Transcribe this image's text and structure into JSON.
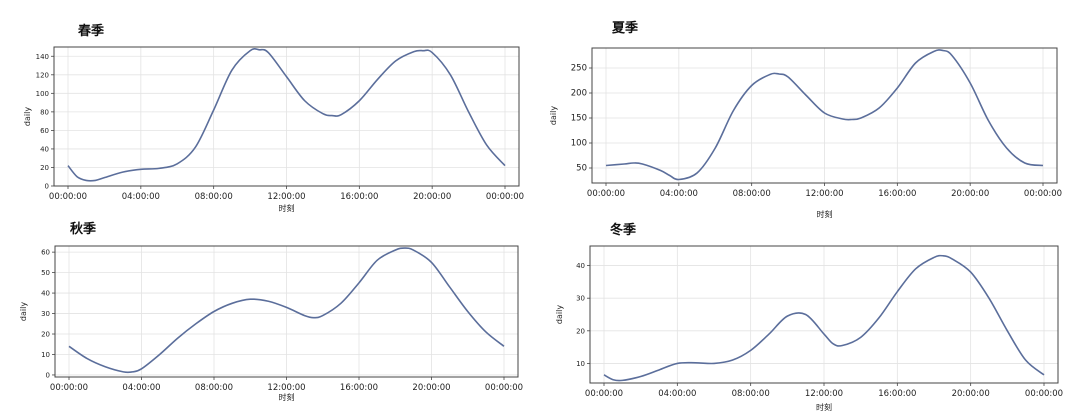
{
  "chart_data": [
    {
      "type": "line",
      "title": "春季",
      "xlabel": "时刻",
      "ylabel": "daily",
      "x_ticks": [
        "00:00:00",
        "04:00:00",
        "08:00:00",
        "12:00:00",
        "16:00:00",
        "20:00:00",
        "00:00:00"
      ],
      "y_ticks": [
        0,
        20,
        40,
        60,
        80,
        100,
        120,
        140
      ],
      "xlim": [
        0,
        24
      ],
      "ylim": [
        0,
        150
      ],
      "grid": true,
      "series": [
        {
          "x": [
            0,
            0.5,
            1,
            1.5,
            2,
            3,
            4,
            5,
            6,
            7,
            8,
            9,
            10,
            10.5,
            11,
            12,
            13,
            14,
            14.5,
            15,
            16,
            17,
            18,
            19,
            19.5,
            20,
            21,
            22,
            23,
            24
          ],
          "values": [
            22,
            10,
            6,
            6,
            9,
            15,
            18,
            19,
            24,
            42,
            82,
            125,
            146,
            147,
            144,
            118,
            92,
            78,
            76,
            77,
            92,
            115,
            135,
            145,
            146,
            144,
            120,
            80,
            44,
            22
          ]
        }
      ],
      "line_color": "#5b6e9b"
    },
    {
      "type": "line",
      "title": "夏季",
      "xlabel": "时刻",
      "ylabel": "daily",
      "x_ticks": [
        "00:00:00",
        "04:00:00",
        "08:00:00",
        "12:00:00",
        "16:00:00",
        "20:00:00",
        "00:00:00"
      ],
      "y_ticks": [
        50,
        100,
        150,
        200,
        250
      ],
      "xlim": [
        0,
        24
      ],
      "ylim": [
        20,
        290
      ],
      "grid": true,
      "series": [
        {
          "x": [
            0,
            1,
            1.5,
            2,
            3,
            3.5,
            4,
            5,
            6,
            7,
            8,
            9,
            9.5,
            10,
            11,
            12,
            13,
            13.5,
            14,
            15,
            16,
            17,
            18,
            18.5,
            19,
            20,
            21,
            22,
            23,
            24
          ],
          "values": [
            55,
            58,
            60,
            58,
            45,
            35,
            27,
            40,
            90,
            165,
            215,
            237,
            238,
            232,
            195,
            160,
            148,
            147,
            150,
            170,
            210,
            260,
            283,
            285,
            275,
            220,
            145,
            90,
            60,
            55
          ]
        }
      ],
      "line_color": "#5b6e9b"
    },
    {
      "type": "line",
      "title": "秋季",
      "xlabel": "时刻",
      "ylabel": "daily",
      "x_ticks": [
        "00:00:00",
        "04:00:00",
        "08:00:00",
        "12:00:00",
        "16:00:00",
        "20:00:00",
        "00:00:00"
      ],
      "y_ticks": [
        0,
        10,
        20,
        30,
        40,
        50,
        60
      ],
      "xlim": [
        0,
        24
      ],
      "ylim": [
        -1,
        63
      ],
      "grid": true,
      "series": [
        {
          "x": [
            0,
            1,
            2,
            3,
            3.5,
            4,
            5,
            6,
            7,
            8,
            9,
            10,
            11,
            12,
            13,
            13.5,
            14,
            15,
            16,
            17,
            18,
            18.5,
            19,
            20,
            21,
            22,
            23,
            24
          ],
          "values": [
            14,
            8,
            4,
            1.5,
            1.5,
            3,
            10,
            18,
            25,
            31,
            35,
            37,
            36,
            33,
            29,
            28,
            29,
            35,
            45,
            56,
            61,
            62,
            61,
            55,
            43,
            31,
            21,
            14
          ]
        }
      ],
      "line_color": "#5b6e9b"
    },
    {
      "type": "line",
      "title": "冬季",
      "xlabel": "时刻",
      "ylabel": "daily",
      "x_ticks": [
        "00:00:00",
        "04:00:00",
        "08:00:00",
        "12:00:00",
        "16:00:00",
        "20:00:00",
        "00:00:00"
      ],
      "y_ticks": [
        10,
        20,
        30,
        40
      ],
      "xlim": [
        0,
        24
      ],
      "ylim": [
        4,
        46
      ],
      "grid": true,
      "series": [
        {
          "x": [
            0,
            0.5,
            1,
            2,
            3,
            4,
            5,
            6,
            7,
            8,
            9,
            10,
            11,
            12,
            12.5,
            13,
            14,
            15,
            16,
            17,
            18,
            18.5,
            19,
            20,
            21,
            22,
            23,
            24
          ],
          "values": [
            6.5,
            5,
            4.8,
            6,
            8,
            10,
            10.2,
            10,
            11,
            14,
            19,
            24.5,
            25,
            19,
            16,
            15.5,
            18,
            24,
            32,
            39,
            42.5,
            43,
            42,
            38,
            30,
            20,
            11,
            6.5
          ]
        }
      ],
      "line_color": "#5b6e9b"
    }
  ]
}
